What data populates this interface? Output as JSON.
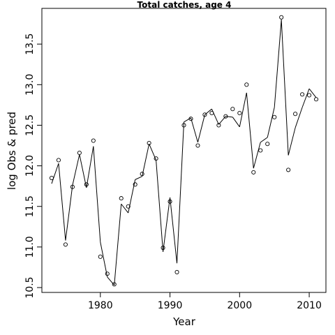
{
  "chart_data": {
    "type": "line",
    "title": "Total catches, age 4",
    "xlabel": "Year",
    "ylabel": "log Obs & pred",
    "xlim": [
      1971.6,
      2012.4
    ],
    "ylim": [
      10.44,
      13.94
    ],
    "xticks": [
      1980,
      1990,
      2000,
      2010
    ],
    "yticks": [
      10.5,
      11.0,
      11.5,
      12.0,
      12.5,
      13.0,
      13.5
    ],
    "ytick_labels": [
      "10.5",
      "11.0",
      "11.5",
      "12.0",
      "12.5",
      "13.0",
      "13.5"
    ],
    "grid": false,
    "series": [
      {
        "style": "points",
        "x": [
          1973,
          1974,
          1975,
          1976,
          1977,
          1978,
          1979,
          1980,
          1981,
          1982,
          1983,
          1984,
          1985,
          1986,
          1987,
          1988,
          1989,
          1990,
          1991,
          1992,
          1993,
          1994,
          1995,
          1996,
          1997,
          1998,
          1999,
          2000,
          2001,
          2002,
          2003,
          2004,
          2005,
          2006,
          2007,
          2008,
          2009,
          2010,
          2011
        ],
        "values": [
          11.85,
          12.07,
          11.03,
          11.74,
          12.16,
          11.77,
          12.31,
          10.88,
          10.67,
          10.54,
          11.6,
          11.5,
          11.77,
          11.9,
          12.28,
          12.09,
          10.99,
          11.56,
          10.69,
          12.5,
          12.58,
          12.25,
          12.63,
          12.65,
          12.5,
          12.61,
          12.7,
          12.65,
          13.0,
          11.92,
          12.19,
          12.27,
          12.6,
          13.83,
          11.95,
          12.64,
          12.88,
          12.87,
          12.82
        ]
      },
      {
        "style": "line",
        "x": [
          1973,
          1974,
          1975,
          1976,
          1977,
          1978,
          1979,
          1980,
          1981,
          1982,
          1983,
          1984,
          1985,
          1986,
          1987,
          1988,
          1989,
          1990,
          1991,
          1992,
          1993,
          1994,
          1995,
          1996,
          1997,
          1998,
          1999,
          2000,
          2001,
          2002,
          2003,
          2004,
          2005,
          2006,
          2007,
          2008,
          2009,
          2010,
          2011
        ],
        "values": [
          11.78,
          12.03,
          11.08,
          11.76,
          12.14,
          11.73,
          12.24,
          11.06,
          10.63,
          10.53,
          11.53,
          11.42,
          11.83,
          11.87,
          12.27,
          12.07,
          10.94,
          11.61,
          10.8,
          12.54,
          12.59,
          12.29,
          12.63,
          12.7,
          12.51,
          12.61,
          12.6,
          12.48,
          12.9,
          11.97,
          12.29,
          12.35,
          12.72,
          13.8,
          12.13,
          12.47,
          12.72,
          12.95,
          12.84
        ]
      }
    ]
  }
}
